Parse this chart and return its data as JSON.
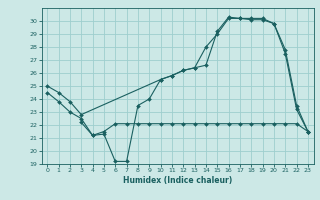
{
  "xlabel": "Humidex (Indice chaleur)",
  "xlim": [
    -0.5,
    23.5
  ],
  "ylim": [
    19,
    31
  ],
  "yticks": [
    19,
    20,
    21,
    22,
    23,
    24,
    25,
    26,
    27,
    28,
    29,
    30
  ],
  "xticks": [
    0,
    1,
    2,
    3,
    4,
    5,
    6,
    7,
    8,
    9,
    10,
    11,
    12,
    13,
    14,
    15,
    16,
    17,
    18,
    19,
    20,
    21,
    22,
    23
  ],
  "bg_color": "#cce8e6",
  "grid_color": "#9ecece",
  "line_color": "#1a6060",
  "line1_x": [
    0,
    1,
    2,
    3,
    4,
    5,
    6,
    7,
    8,
    9,
    10,
    11,
    12,
    13,
    14,
    15,
    16,
    17,
    18,
    19,
    20,
    21,
    22,
    23
  ],
  "line1_y": [
    24.5,
    23.8,
    23.0,
    22.5,
    21.2,
    21.3,
    19.2,
    19.2,
    23.5,
    24.0,
    25.5,
    25.8,
    26.2,
    26.4,
    28.0,
    29.0,
    30.2,
    30.2,
    30.1,
    30.1,
    29.8,
    27.5,
    23.2,
    21.5
  ],
  "line2_x": [
    0,
    1,
    2,
    3,
    10,
    11,
    12,
    13,
    14,
    15,
    16,
    17,
    18,
    19,
    20,
    21,
    22,
    23
  ],
  "line2_y": [
    25.0,
    24.5,
    23.8,
    22.8,
    25.5,
    25.8,
    26.2,
    26.4,
    26.6,
    29.2,
    30.3,
    30.2,
    30.2,
    30.2,
    29.8,
    27.8,
    23.5,
    21.5
  ],
  "line3_x": [
    3,
    4,
    5,
    6,
    7,
    8,
    9,
    10,
    11,
    12,
    13,
    14,
    15,
    16,
    17,
    18,
    19,
    20,
    21,
    22,
    23
  ],
  "line3_y": [
    22.2,
    21.2,
    21.5,
    22.1,
    22.1,
    22.1,
    22.1,
    22.1,
    22.1,
    22.1,
    22.1,
    22.1,
    22.1,
    22.1,
    22.1,
    22.1,
    22.1,
    22.1,
    22.1,
    22.1,
    21.5
  ]
}
